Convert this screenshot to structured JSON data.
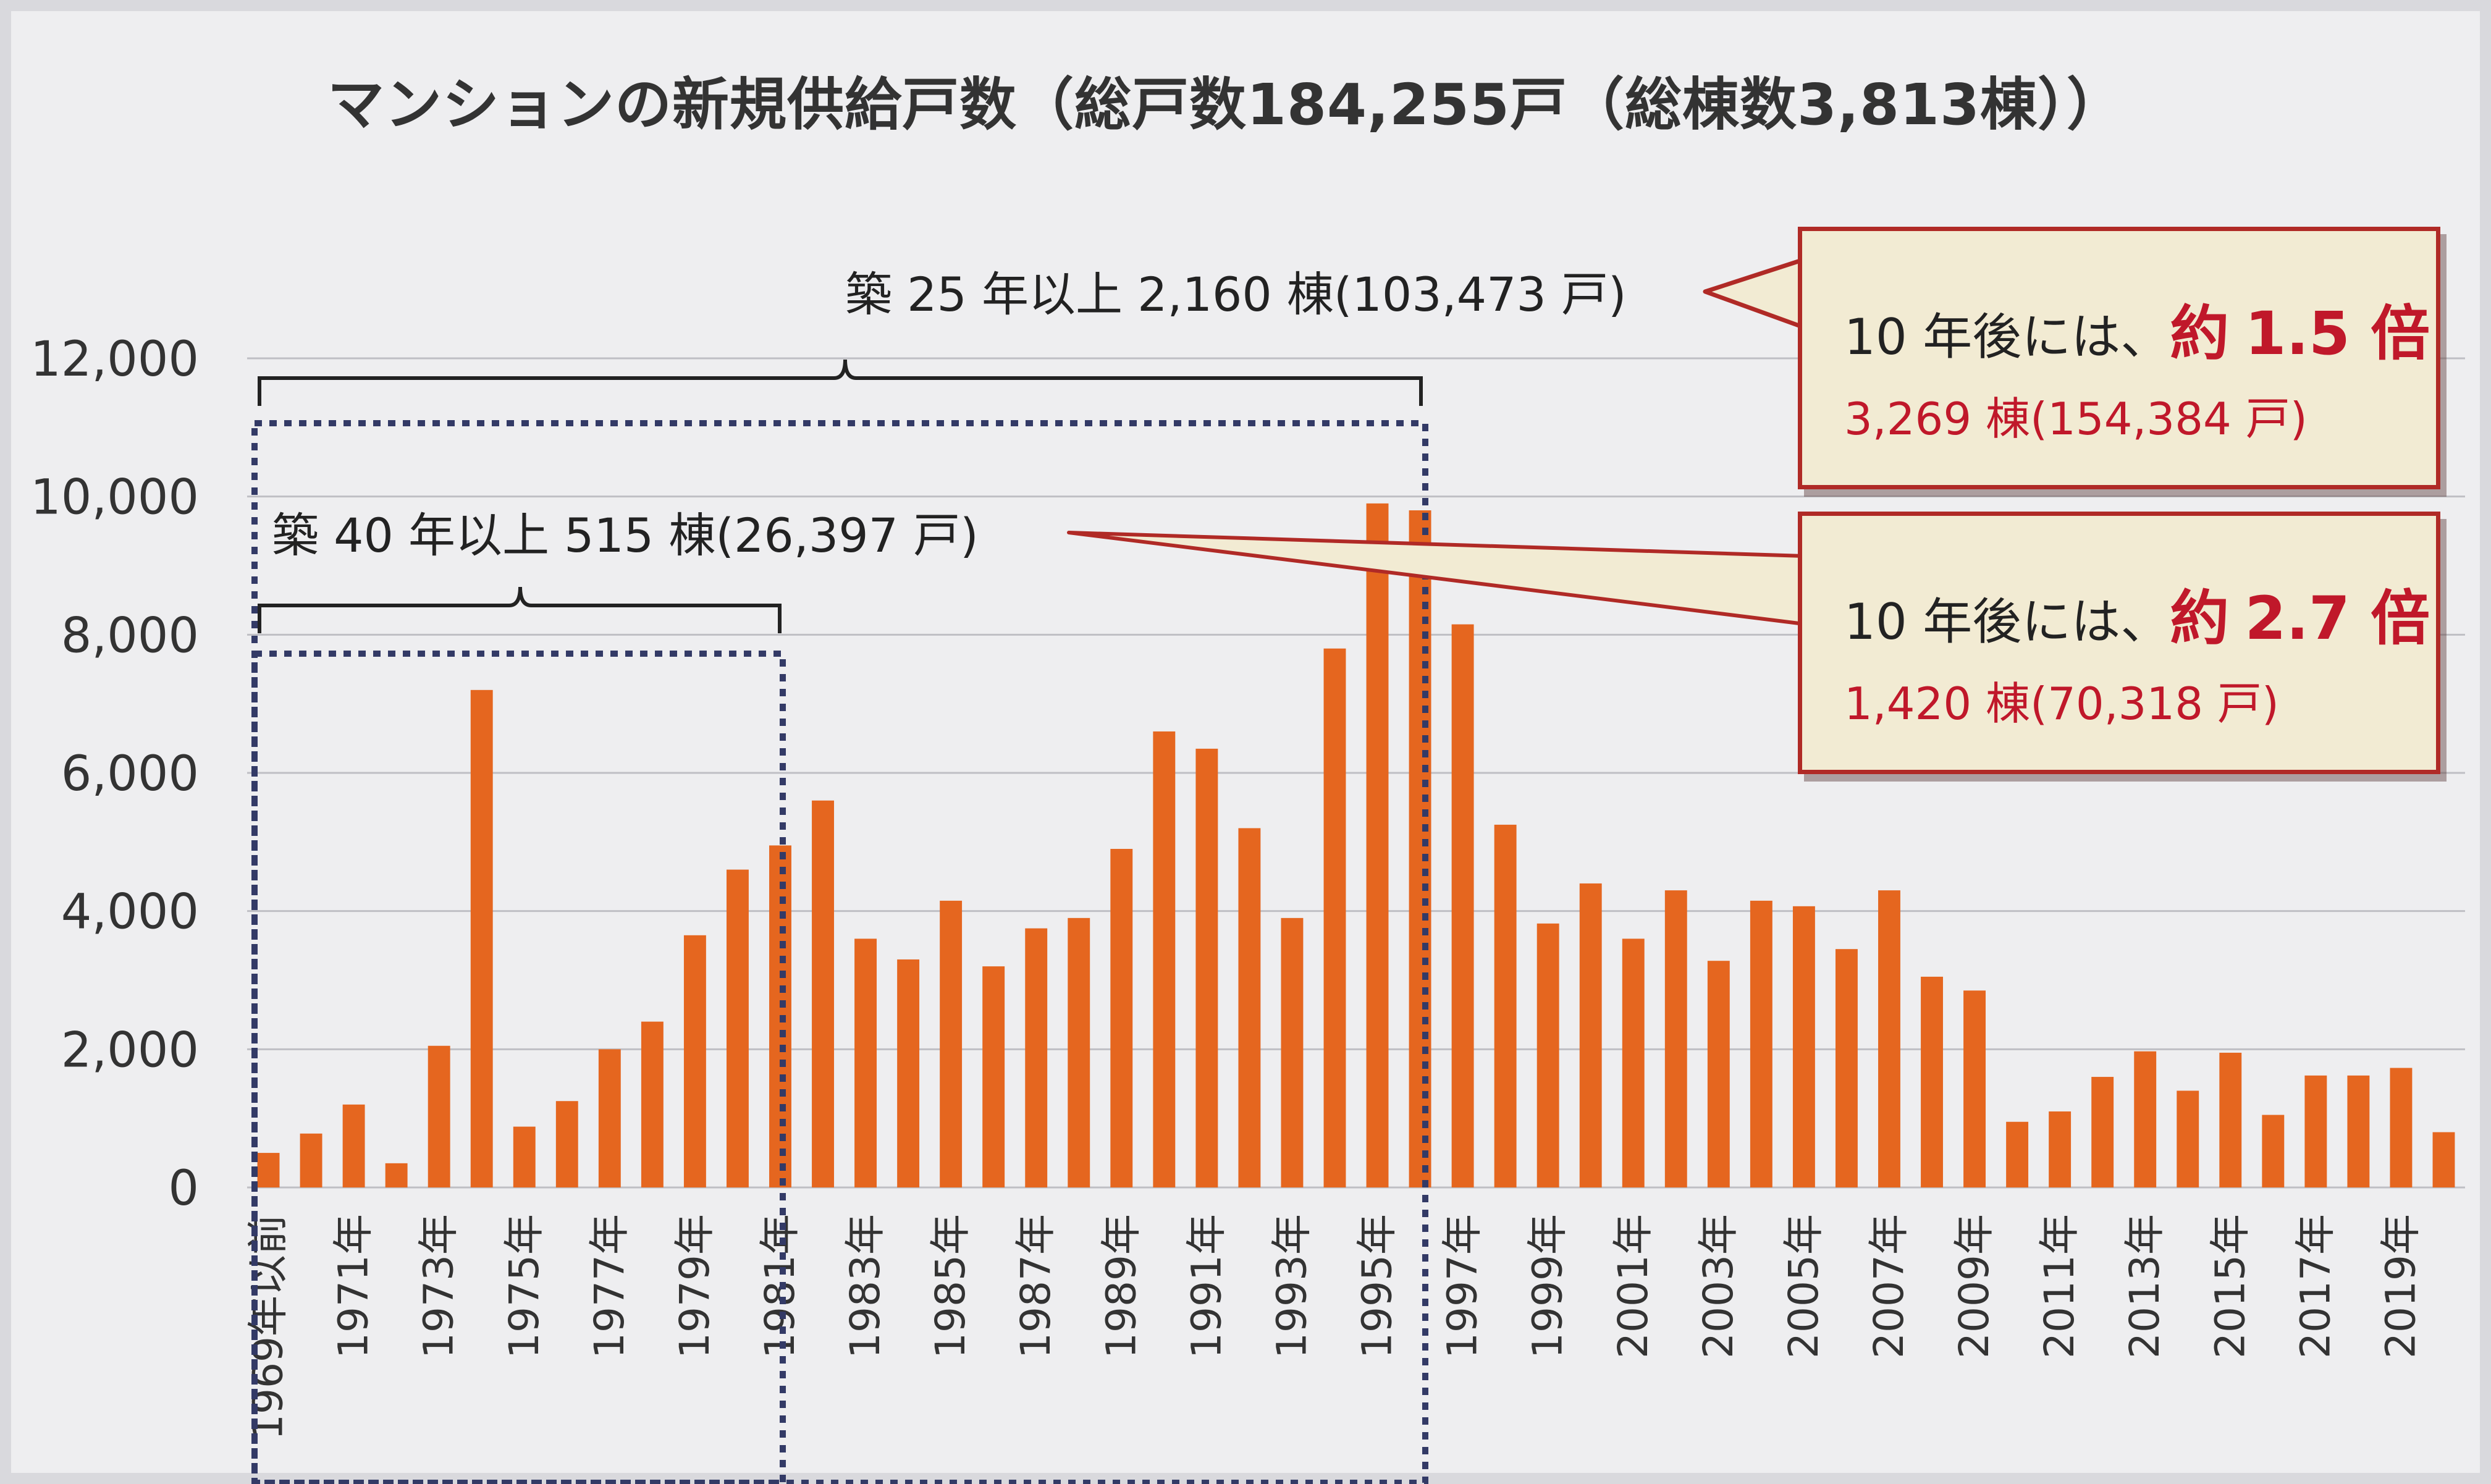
{
  "title": "マンションの新規供給戸数（総戸数184,255戸（総棟数3,813棟））",
  "annotations": {
    "over25": "築 25 年以上  2,160 棟(103,473 戸)",
    "over40": "築 40 年以上  515 棟(26,397 戸)"
  },
  "callouts": [
    {
      "prefix": "10 年後には、",
      "approx": "約",
      "multiplier": "1.5 倍",
      "detail": "3,269 棟(154,384 戸)"
    },
    {
      "prefix": "10 年後には、",
      "approx": "約",
      "multiplier": "2.7 倍",
      "detail": "1,420 棟(70,318 戸)"
    }
  ],
  "colors": {
    "bar": "#e5661f",
    "accent": "#c0182a",
    "callout_bg": "#f2ebd3",
    "grid": "#bfbfc4",
    "bracket": "#333a66"
  },
  "chart_data": {
    "type": "bar",
    "title": "マンションの新規供給戸数（総戸数184,255戸（総棟数3,813棟））",
    "xlabel": "",
    "ylabel": "",
    "ylim": [
      0,
      12000
    ],
    "yticks": [
      "0",
      "2,000",
      "4,000",
      "6,000",
      "8,000",
      "10,000",
      "12,000"
    ],
    "grid": true,
    "categories": [
      "1969年以前",
      "1970年",
      "1971年",
      "1972年",
      "1973年",
      "1974年",
      "1975年",
      "1976年",
      "1977年",
      "1978年",
      "1979年",
      "1980年",
      "1981年",
      "1982年",
      "1983年",
      "1984年",
      "1985年",
      "1986年",
      "1987年",
      "1988年",
      "1989年",
      "1990年",
      "1991年",
      "1992年",
      "1993年",
      "1994年",
      "1995年",
      "1996年",
      "1997年",
      "1998年",
      "1999年",
      "2000年",
      "2001年",
      "2002年",
      "2003年",
      "2004年",
      "2005年",
      "2006年",
      "2007年",
      "2008年",
      "2009年",
      "2010年",
      "2011年",
      "2012年",
      "2013年",
      "2014年",
      "2015年",
      "2016年",
      "2017年",
      "2018年",
      "2019年",
      "2020年"
    ],
    "tick_labels": [
      "1969年以前",
      "",
      "1971年",
      "",
      "1973年",
      "",
      "1975年",
      "",
      "1977年",
      "",
      "1979年",
      "",
      "1981年",
      "",
      "1983年",
      "",
      "1985年",
      "",
      "1987年",
      "",
      "1989年",
      "",
      "1991年",
      "",
      "1993年",
      "",
      "1995年",
      "",
      "1997年",
      "",
      "1999年",
      "",
      "2001年",
      "",
      "2003年",
      "",
      "2005年",
      "",
      "2007年",
      "",
      "2009年",
      "",
      "2011年",
      "",
      "2013年",
      "",
      "2015年",
      "",
      "2017年",
      "",
      "2019年",
      ""
    ],
    "values": [
      500,
      780,
      1200,
      350,
      2050,
      7200,
      880,
      1250,
      2000,
      2400,
      3650,
      4600,
      4950,
      5600,
      3600,
      3300,
      4150,
      3200,
      3750,
      3900,
      4900,
      6600,
      6350,
      5200,
      3900,
      7800,
      9900,
      9800,
      8150,
      5250,
      3820,
      4400,
      3600,
      4300,
      3280,
      4150,
      4070,
      3450,
      4300,
      3050,
      2850,
      950,
      1100,
      1600,
      1970,
      1400,
      1950,
      1050,
      1620,
      1620,
      1730,
      800
    ]
  }
}
